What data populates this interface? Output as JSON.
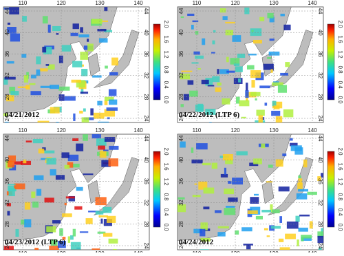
{
  "panels": [
    {
      "label": "04/21/2012"
    },
    {
      "label": "04/22/2012 (LTP 6)"
    },
    {
      "label": "04/23/2012 (LTP 6)"
    },
    {
      "label": "04/24/2012"
    }
  ],
  "lon_ticks": [
    "110",
    "120",
    "130",
    "140"
  ],
  "lat_ticks": [
    "24",
    "28",
    "32",
    "36",
    "40",
    "44"
  ],
  "colorbar_ticks": [
    "0.0",
    "0.4",
    "0.8",
    "1.2",
    "1.6",
    "2.0"
  ]
}
